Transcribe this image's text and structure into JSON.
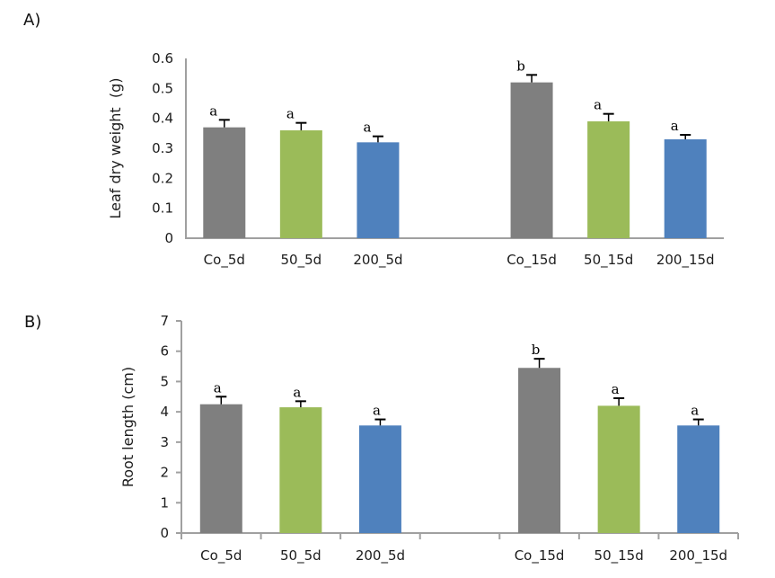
{
  "figure": {
    "description": "Two-panel bar chart figure with significance letters and error bars"
  },
  "colors": {
    "gray_bar": "#7f7f7f",
    "green_bar": "#9bbb59",
    "blue_bar": "#4f81bd",
    "axis": "#a0a0a0",
    "error_bar": "#000000",
    "text": "#1c1c1c"
  },
  "chart_data": [
    {
      "type": "bar",
      "panel_label": "A)",
      "title": "",
      "xlabel": "",
      "ylabel": "Leaf dry weight  (g)",
      "categories": [
        "Co_5d",
        "50_5d",
        "200_5d",
        "Co_15d",
        "50_15d",
        "200_15d"
      ],
      "values": [
        0.37,
        0.36,
        0.32,
        0.52,
        0.39,
        0.33
      ],
      "errors": [
        0.025,
        0.025,
        0.02,
        0.025,
        0.025,
        0.015
      ],
      "sig_letters": [
        "a",
        "a",
        "a",
        "b",
        "a",
        "a"
      ],
      "bar_colors": [
        "#7f7f7f",
        "#9bbb59",
        "#4f81bd",
        "#7f7f7f",
        "#9bbb59",
        "#4f81bd"
      ],
      "ylim": [
        0,
        0.6
      ],
      "ytick_labels": [
        "0",
        "0.1",
        "0.2",
        "0.3",
        "0.4",
        "0.5",
        "0.6"
      ],
      "grid": "off",
      "legend": "none",
      "gap_between_groups": true
    },
    {
      "type": "bar",
      "panel_label": "B)",
      "title": "",
      "xlabel": "",
      "ylabel": "Root length (cm)",
      "categories": [
        "Co_5d",
        "50_5d",
        "200_5d",
        "Co_15d",
        "50_15d",
        "200_15d"
      ],
      "values": [
        4.25,
        4.15,
        3.55,
        5.45,
        4.2,
        3.55
      ],
      "errors": [
        0.25,
        0.2,
        0.2,
        0.3,
        0.25,
        0.2
      ],
      "sig_letters": [
        "a",
        "a",
        "a",
        "b",
        "a",
        "a"
      ],
      "bar_colors": [
        "#7f7f7f",
        "#9bbb59",
        "#4f81bd",
        "#7f7f7f",
        "#9bbb59",
        "#4f81bd"
      ],
      "ylim": [
        0,
        7
      ],
      "ytick_labels": [
        "0",
        "1",
        "2",
        "3",
        "4",
        "5",
        "6",
        "7"
      ],
      "grid": "off",
      "legend": "none",
      "gap_between_groups": true
    }
  ]
}
